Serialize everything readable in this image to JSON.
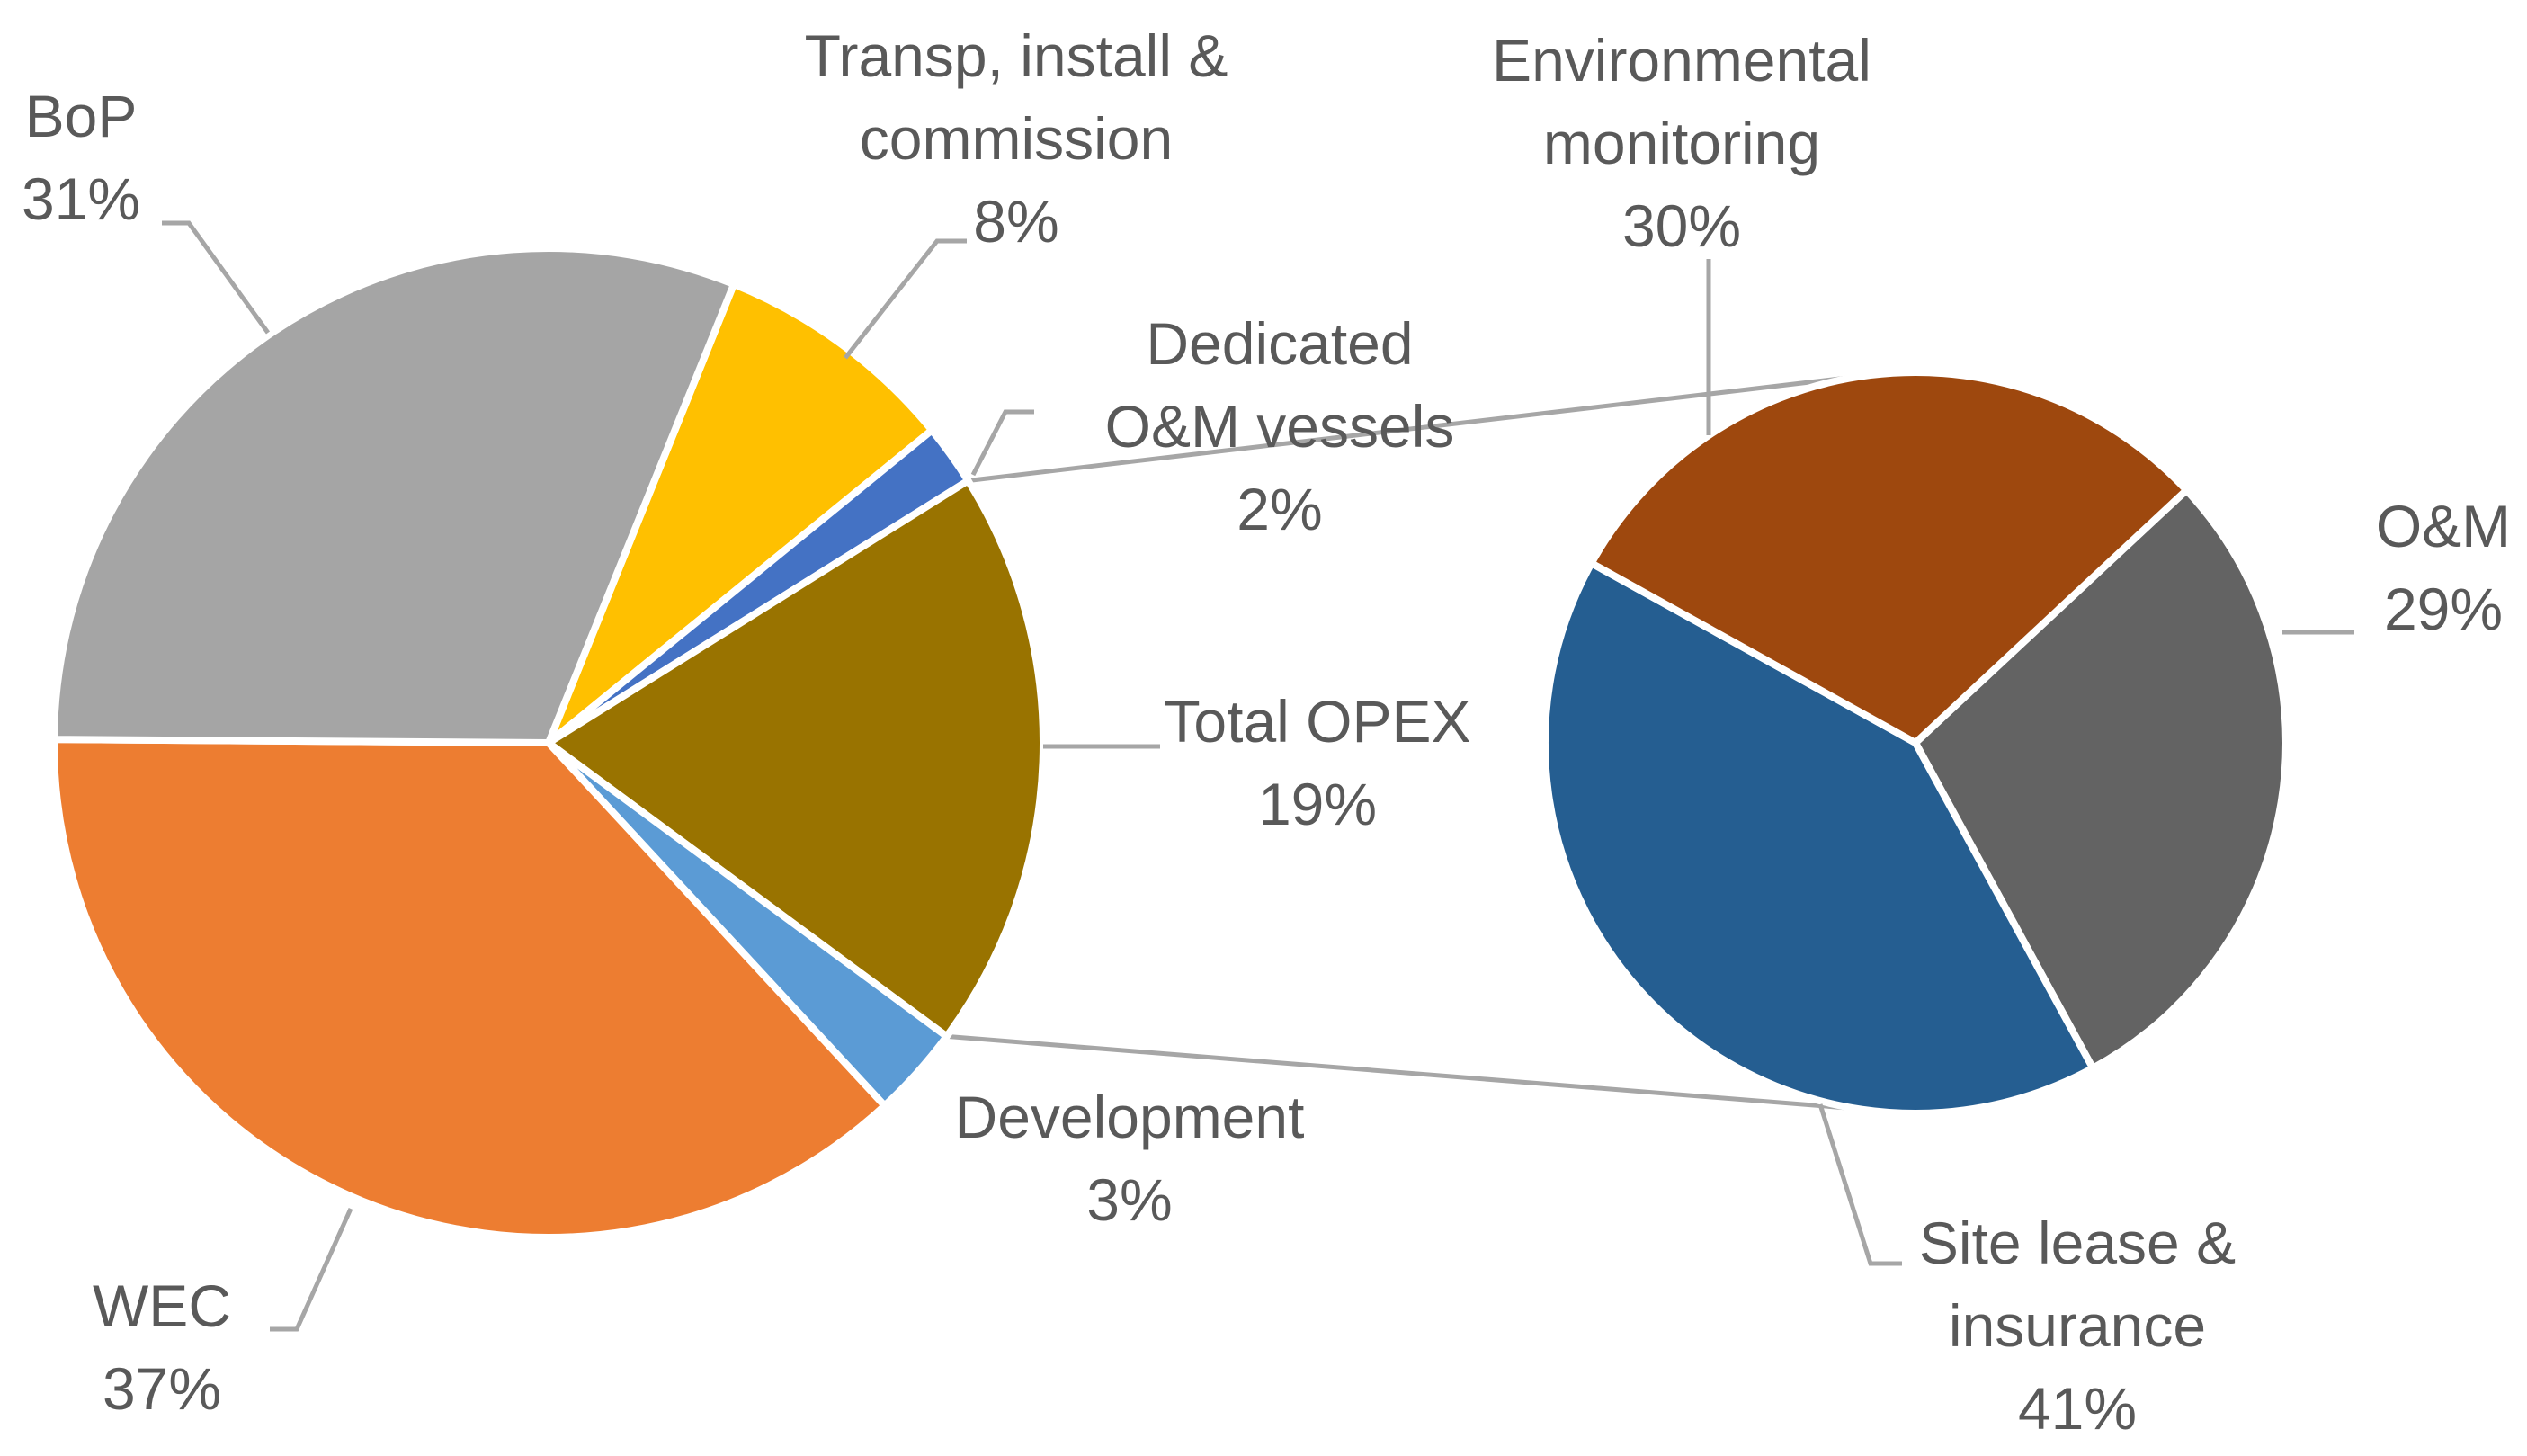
{
  "chart_data": {
    "type": "pie-of-pie",
    "title": "",
    "main_pie": {
      "slices": [
        {
          "label_lines": [
            "Transp, install &",
            "commission"
          ],
          "value": 8,
          "value_text": "8%",
          "color": "#ffc000"
        },
        {
          "label_lines": [
            "Dedicated",
            "O&M vessels"
          ],
          "value": 2,
          "value_text": "2%",
          "color": "#4472c4"
        },
        {
          "label_lines": [
            "Total OPEX"
          ],
          "value": 19,
          "value_text": "19%",
          "color": "#997300"
        },
        {
          "label_lines": [
            "Development"
          ],
          "value": 3,
          "value_text": "3%",
          "color": "#5b9bd5"
        },
        {
          "label_lines": [
            "WEC"
          ],
          "value": 37,
          "value_text": "37%",
          "color": "#ed7d31"
        },
        {
          "label_lines": [
            "BoP"
          ],
          "value": 31,
          "value_text": "31%",
          "color": "#a5a5a5"
        }
      ]
    },
    "secondary_pie": {
      "parent": "Total OPEX",
      "slices": [
        {
          "label_lines": [
            "O&M"
          ],
          "value": 29,
          "value_text": "29%",
          "color": "#636363"
        },
        {
          "label_lines": [
            "Site lease &",
            "insurance"
          ],
          "value": 41,
          "value_text": "41%",
          "color": "#255e91"
        },
        {
          "label_lines": [
            "Environmental",
            "monitoring"
          ],
          "value": 30,
          "value_text": "30%",
          "color": "#9e480e"
        }
      ]
    }
  }
}
